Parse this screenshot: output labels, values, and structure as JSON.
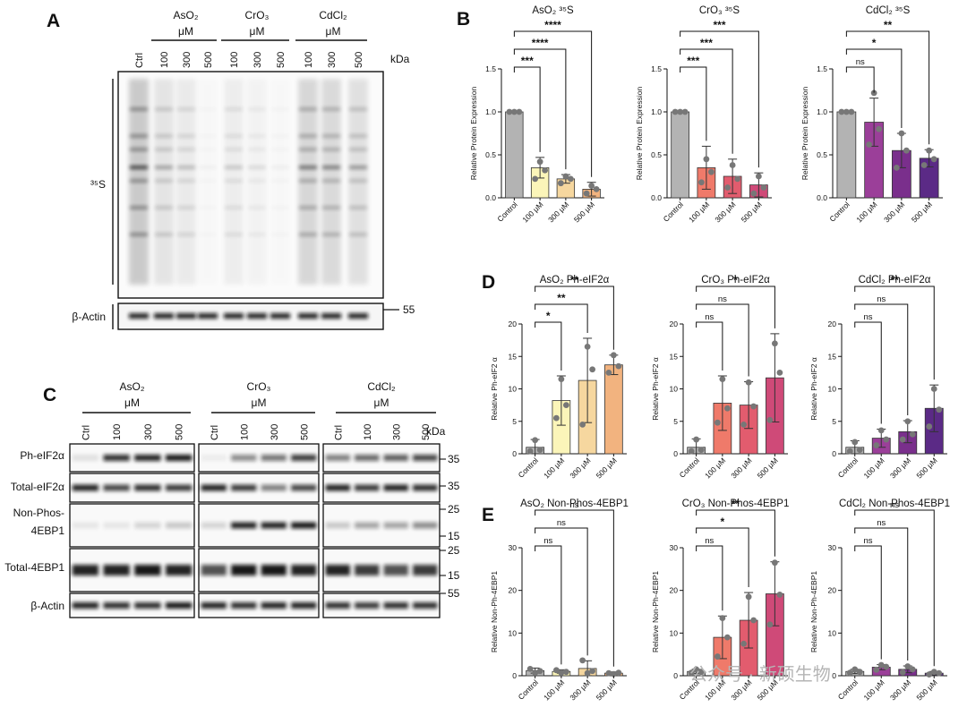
{
  "panels": {
    "a": "A",
    "b": "B",
    "c": "C",
    "d": "D",
    "e": "E"
  },
  "colors": {
    "control": "#b3b3b3",
    "aso2": [
      "#fbf5b9",
      "#f6d79f",
      "#f2b37f"
    ],
    "cro3": [
      "#ef7a6a",
      "#e25c6e",
      "#cf4a78"
    ],
    "cdcl2": [
      "#9b3f99",
      "#7a2f8c",
      "#5b2a86"
    ]
  },
  "blot_a": {
    "group_labels": [
      "AsO₂",
      "CrO₃",
      "CdCl₂"
    ],
    "unit": "μM",
    "lanes": [
      "Ctrl",
      "100",
      "300",
      "500",
      "100",
      "300",
      "500",
      "100",
      "300",
      "500"
    ],
    "kda": "kDa",
    "marker": "55",
    "row_labels": [
      "³⁵S",
      "β-Actin"
    ]
  },
  "blot_c": {
    "group_labels": [
      "AsO₂",
      "CrO₃",
      "CdCl₂"
    ],
    "unit": "μM",
    "lanes": [
      "Ctrl",
      "100",
      "300",
      "500"
    ],
    "kda": "kDa",
    "row_labels": [
      "Ph-eIF2α",
      "Total-eIF2α",
      "Non-Phos-",
      "4EBP1",
      "Total-4EBP1",
      "β-Actin"
    ],
    "markers": [
      "35",
      "35",
      "25",
      "15",
      "25",
      "15",
      "55"
    ]
  },
  "watermark": "公众号 · 新硕生物",
  "chart_data": [
    {
      "panel": "B",
      "type": "bar",
      "title": "AsO₂ ³⁵S",
      "ylabel": "Relative Protein Expression",
      "categories": [
        "Control",
        "100 μM",
        "300 μM",
        "500 μM"
      ],
      "values": [
        1.0,
        0.35,
        0.22,
        0.1
      ],
      "error": [
        0,
        0.12,
        0.05,
        0.08
      ],
      "points": [
        [
          1,
          1,
          1
        ],
        [
          0.22,
          0.42,
          0.32
        ],
        [
          0.17,
          0.25,
          0.22
        ],
        [
          0.05,
          0.14,
          0.1
        ]
      ],
      "ylim": [
        0,
        1.5
      ],
      "yticks": [
        "0.0",
        "0.5",
        "1.0",
        "1.5"
      ],
      "comparisons": [
        {
          "to": 1,
          "label": "***"
        },
        {
          "to": 2,
          "label": "****"
        },
        {
          "to": 3,
          "label": "****"
        }
      ]
    },
    {
      "panel": "B",
      "type": "bar",
      "title": "CrO₃ ³⁵S",
      "ylabel": "Relative Protein Expression",
      "categories": [
        "Control",
        "100 μM",
        "300 μM",
        "500 μM"
      ],
      "values": [
        1.0,
        0.35,
        0.25,
        0.15
      ],
      "error": [
        0,
        0.25,
        0.2,
        0.14
      ],
      "points": [
        [
          1,
          1,
          1
        ],
        [
          0.18,
          0.45,
          0.3
        ],
        [
          0.12,
          0.38,
          0.22
        ],
        [
          0.05,
          0.25,
          0.12
        ]
      ],
      "ylim": [
        0,
        1.5
      ],
      "yticks": [
        "0.0",
        "0.5",
        "1.0",
        "1.5"
      ],
      "comparisons": [
        {
          "to": 1,
          "label": "***"
        },
        {
          "to": 2,
          "label": "***"
        },
        {
          "to": 3,
          "label": "***"
        }
      ]
    },
    {
      "panel": "B",
      "type": "bar",
      "title": "CdCl₂ ³⁵S",
      "ylabel": "Relative Protein Expression",
      "categories": [
        "Control",
        "100 μM",
        "300 μM",
        "500 μM"
      ],
      "values": [
        1.0,
        0.88,
        0.55,
        0.46
      ],
      "error": [
        0,
        0.28,
        0.2,
        0.1
      ],
      "points": [
        [
          1,
          1,
          1
        ],
        [
          0.62,
          1.22,
          0.8
        ],
        [
          0.35,
          0.75,
          0.55
        ],
        [
          0.38,
          0.55,
          0.45
        ]
      ],
      "ylim": [
        0,
        1.5
      ],
      "yticks": [
        "0.0",
        "0.5",
        "1.0",
        "1.5"
      ],
      "comparisons": [
        {
          "to": 1,
          "label": "ns"
        },
        {
          "to": 2,
          "label": "*"
        },
        {
          "to": 3,
          "label": "**"
        }
      ]
    },
    {
      "panel": "D",
      "type": "bar",
      "title": "AsO₂ Ph-eIF2α",
      "ylabel": "Relative Ph-eIF2 α",
      "categories": [
        "Control",
        "100 μM",
        "300 μM",
        "500 μM"
      ],
      "values": [
        1.0,
        8.2,
        11.3,
        13.7
      ],
      "error": [
        1.2,
        3.8,
        6.5,
        1.5
      ],
      "points": [
        [
          0.4,
          2.1,
          0.6
        ],
        [
          5.5,
          11.5,
          7.5
        ],
        [
          4.5,
          16.5,
          13
        ],
        [
          12.5,
          15.2,
          13.5
        ]
      ],
      "ylim": [
        0,
        20
      ],
      "yticks": [
        "0",
        "5",
        "10",
        "15",
        "20"
      ],
      "comparisons": [
        {
          "to": 1,
          "label": "*"
        },
        {
          "to": 2,
          "label": "**"
        },
        {
          "to": 3,
          "label": "**"
        }
      ]
    },
    {
      "panel": "D",
      "type": "bar",
      "title": "CrO₃ Ph-eIF2α",
      "ylabel": "Relative Ph-eIF2 α",
      "categories": [
        "Control",
        "100 μM",
        "300 μM",
        "500 μM"
      ],
      "values": [
        1.0,
        7.8,
        7.5,
        11.7
      ],
      "error": [
        1.3,
        4.2,
        3.6,
        6.8
      ],
      "points": [
        [
          0.4,
          2.2,
          0.6
        ],
        [
          4.8,
          11.5,
          7
        ],
        [
          4.5,
          11,
          7.3
        ],
        [
          5.2,
          17,
          12.5
        ]
      ],
      "ylim": [
        0,
        20
      ],
      "yticks": [
        "0",
        "5",
        "10",
        "15",
        "20"
      ],
      "comparisons": [
        {
          "to": 1,
          "label": "ns"
        },
        {
          "to": 2,
          "label": "ns"
        },
        {
          "to": 3,
          "label": "*"
        }
      ]
    },
    {
      "panel": "D",
      "type": "bar",
      "title": "CdCl₂ Ph-eIF2α",
      "ylabel": "Relative Ph-eIF2 α",
      "categories": [
        "Control",
        "100 μM",
        "300 μM",
        "500 μM"
      ],
      "values": [
        1.0,
        2.4,
        3.4,
        7.0
      ],
      "error": [
        1.0,
        1.4,
        1.7,
        3.6
      ],
      "points": [
        [
          0.4,
          1.8,
          0.6
        ],
        [
          1.3,
          3.6,
          2.2
        ],
        [
          2.2,
          5,
          3
        ],
        [
          4.2,
          10,
          6.8
        ]
      ],
      "ylim": [
        0,
        20
      ],
      "yticks": [
        "0",
        "5",
        "10",
        "15",
        "20"
      ],
      "comparisons": [
        {
          "to": 1,
          "label": "ns"
        },
        {
          "to": 2,
          "label": "ns"
        },
        {
          "to": 3,
          "label": "**"
        }
      ]
    },
    {
      "panel": "E",
      "type": "bar",
      "title": "AsO₂ Non-Phos-4EBP1",
      "ylabel": "Relative Non-Ph-4EBP1",
      "categories": [
        "Control",
        "100 μM",
        "300 μM",
        "500 μM"
      ],
      "values": [
        1.2,
        1.0,
        1.7,
        0.6
      ],
      "error": [
        0.6,
        0.4,
        1.8,
        0.3
      ],
      "points": [
        [
          1.6,
          0.7,
          1.1
        ],
        [
          1.3,
          0.7,
          0.9
        ],
        [
          3.6,
          0.6,
          1.1
        ],
        [
          0.6,
          0.4,
          0.7
        ]
      ],
      "ylim": [
        0,
        30
      ],
      "yticks": [
        "0",
        "10",
        "20",
        "30"
      ],
      "comparisons": [
        {
          "to": 1,
          "label": "ns"
        },
        {
          "to": 2,
          "label": "ns"
        },
        {
          "to": 3,
          "label": "ns"
        }
      ]
    },
    {
      "panel": "E",
      "type": "bar",
      "title": "CrO₃ Non-Phos-4EBP1",
      "ylabel": "Relative Non-Ph-4EBP1",
      "categories": [
        "Control",
        "100 μM",
        "300 μM",
        "500 μM"
      ],
      "values": [
        1.0,
        9.0,
        13.0,
        19.2
      ],
      "error": [
        0.5,
        5.0,
        6.5,
        7.5
      ],
      "points": [
        [
          0.7,
          1.5,
          0.9
        ],
        [
          4.5,
          13.5,
          9
        ],
        [
          7.5,
          18.5,
          13
        ],
        [
          12,
          26.5,
          19
        ]
      ],
      "ylim": [
        0,
        30
      ],
      "yticks": [
        "0",
        "10",
        "20",
        "30"
      ],
      "comparisons": [
        {
          "to": 1,
          "label": "ns"
        },
        {
          "to": 2,
          "label": "*"
        },
        {
          "to": 3,
          "label": "**"
        }
      ]
    },
    {
      "panel": "E",
      "type": "bar",
      "title": "CdCl₂ Non-Phos-4EBP1",
      "ylabel": "Relative Non-Ph-4EBP1",
      "categories": [
        "Control",
        "100 μM",
        "300 μM",
        "500 μM"
      ],
      "values": [
        1.0,
        2.0,
        1.5,
        0.6
      ],
      "error": [
        0.5,
        0.6,
        0.8,
        0.4
      ],
      "points": [
        [
          0.7,
          1.5,
          0.9
        ],
        [
          1.4,
          2.5,
          2.1
        ],
        [
          0.8,
          2.2,
          1.5
        ],
        [
          0.3,
          0.9,
          0.6
        ]
      ],
      "ylim": [
        0,
        30
      ],
      "yticks": [
        "0",
        "10",
        "20",
        "30"
      ],
      "comparisons": [
        {
          "to": 1,
          "label": "ns"
        },
        {
          "to": 2,
          "label": "ns"
        },
        {
          "to": 3,
          "label": "ns"
        }
      ]
    }
  ]
}
